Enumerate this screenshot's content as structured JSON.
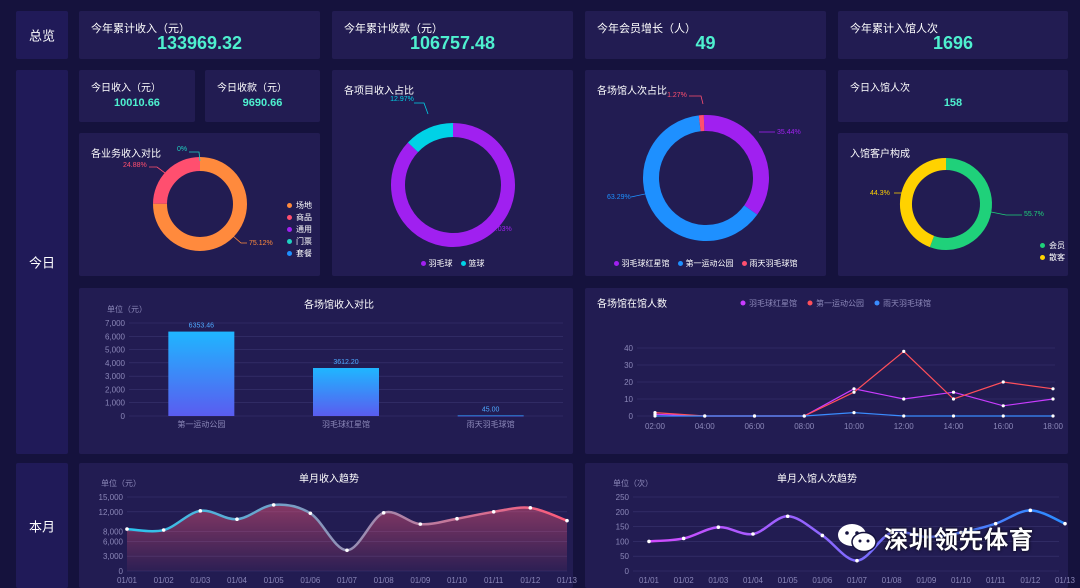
{
  "sections": {
    "overview": "总览",
    "today": "今日",
    "month": "本月"
  },
  "kpis": [
    {
      "label": "今年累计收入（元）",
      "value": "133969.32"
    },
    {
      "label": "今年累计收款（元）",
      "value": "106757.48"
    },
    {
      "label": "今年会员增长（人）",
      "value": "49"
    },
    {
      "label": "今年累计入馆人次",
      "value": "1696"
    }
  ],
  "today": {
    "income_label": "今日收入（元）",
    "income_value": "10010.66",
    "receipt_label": "今日收款（元）",
    "receipt_value": "9690.66",
    "entries_label": "今日入馆人次",
    "entries_value": "158"
  },
  "colors": {
    "accent": "#4ef0cf",
    "purple": "#a020f0",
    "cyan": "#00d2e6",
    "blue": "#1e90ff",
    "orange": "#ff8a3d",
    "pink": "#ff4f6f",
    "green": "#1fd17a",
    "yellow": "#ffd200"
  },
  "chart_data": [
    {
      "type": "pie",
      "title": "各业务收入对比",
      "slices": [
        {
          "name": "场地",
          "value": 75.12,
          "label": "75.12%",
          "color": "#ff8a3d"
        },
        {
          "name": "商品",
          "value": 24.88,
          "label": "24.88%",
          "color": "#ff4f6f"
        },
        {
          "name": "通用",
          "value": 0,
          "label": "",
          "color": "#a020f0"
        },
        {
          "name": "门票",
          "value": 0,
          "label": "0%",
          "color": "#1fd1c1"
        },
        {
          "name": "套餐",
          "value": 0,
          "label": "",
          "color": "#1e90ff"
        }
      ]
    },
    {
      "type": "pie",
      "title": "各项目收入占比",
      "slices": [
        {
          "name": "羽毛球",
          "value": 87.03,
          "label": "87.03%",
          "color": "#a020f0"
        },
        {
          "name": "篮球",
          "value": 12.97,
          "label": "12.97%",
          "color": "#00d2e6"
        }
      ]
    },
    {
      "type": "pie",
      "title": "各场馆人次占比",
      "slices": [
        {
          "name": "羽毛球红星馆",
          "value": 35.44,
          "label": "35.44%",
          "color": "#a020f0"
        },
        {
          "name": "第一运动公园",
          "value": 63.29,
          "label": "63.29%",
          "color": "#1e90ff"
        },
        {
          "name": "雨天羽毛球馆",
          "value": 1.27,
          "label": "1.27%",
          "color": "#ff4f6f"
        }
      ]
    },
    {
      "type": "pie",
      "title": "入馆客户构成",
      "slices": [
        {
          "name": "会员",
          "value": 55.7,
          "label": "55.7%",
          "color": "#1fd17a"
        },
        {
          "name": "散客",
          "value": 44.3,
          "label": "44.3%",
          "color": "#ffd200"
        }
      ]
    },
    {
      "type": "bar",
      "title": "各场馆收入对比",
      "ylabel": "单位（元）",
      "categories": [
        "第一运动公园",
        "羽毛球红星馆",
        "雨天羽毛球馆"
      ],
      "values": [
        6353.46,
        3612.2,
        45
      ],
      "value_labels": [
        "6353.46",
        "3612.20",
        "45.00"
      ],
      "ylim": [
        0,
        7000
      ],
      "yticks": [
        "0",
        "1,000",
        "2,000",
        "3,000",
        "4,000",
        "5,000",
        "6,000",
        "7,000"
      ]
    },
    {
      "type": "line",
      "title": "各场馆在馆人数",
      "x": [
        "02:00",
        "04:00",
        "06:00",
        "08:00",
        "10:00",
        "12:00",
        "14:00",
        "16:00",
        "18:00"
      ],
      "ylim": [
        0,
        40
      ],
      "yticks": [
        "0",
        "10",
        "20",
        "30",
        "40"
      ],
      "series": [
        {
          "name": "羽毛球红星馆",
          "color": "#c93cff",
          "values": [
            1,
            0,
            0,
            0,
            16,
            10,
            14,
            6,
            10
          ]
        },
        {
          "name": "第一运动公园",
          "color": "#ff4f5a",
          "values": [
            2,
            0,
            0,
            0,
            14,
            38,
            10,
            20,
            16
          ]
        },
        {
          "name": "雨天羽毛球馆",
          "color": "#3a8cff",
          "values": [
            0,
            0,
            0,
            0,
            2,
            0,
            0,
            0,
            0
          ]
        }
      ]
    },
    {
      "type": "area",
      "title": "单月收入趋势",
      "ylabel": "单位（元）",
      "x": [
        "01/01",
        "01/02",
        "01/03",
        "01/04",
        "01/05",
        "01/06",
        "01/07",
        "01/08",
        "01/09",
        "01/10",
        "01/11",
        "01/12",
        "01/13"
      ],
      "values": [
        8500,
        8300,
        12200,
        10500,
        13400,
        11700,
        4200,
        11800,
        9500,
        10600,
        12000,
        12800,
        10200
      ],
      "ylim": [
        0,
        15000
      ],
      "yticks": [
        "0",
        "3,000",
        "6,000",
        "8,000",
        "12,000",
        "15,000"
      ]
    },
    {
      "type": "line",
      "title": "单月入馆人次趋势",
      "ylabel": "单位（次）",
      "x": [
        "01/01",
        "01/02",
        "01/03",
        "01/04",
        "01/05",
        "01/06",
        "01/07",
        "01/08",
        "01/09",
        "01/10",
        "01/11",
        "01/12",
        "01/13"
      ],
      "values": [
        100,
        110,
        148,
        125,
        185,
        120,
        35,
        130,
        115,
        130,
        160,
        205,
        160
      ],
      "ylim": [
        0,
        250
      ],
      "yticks": [
        "0",
        "50",
        "100",
        "150",
        "200",
        "250"
      ]
    }
  ],
  "watermark": "深圳领先体育"
}
